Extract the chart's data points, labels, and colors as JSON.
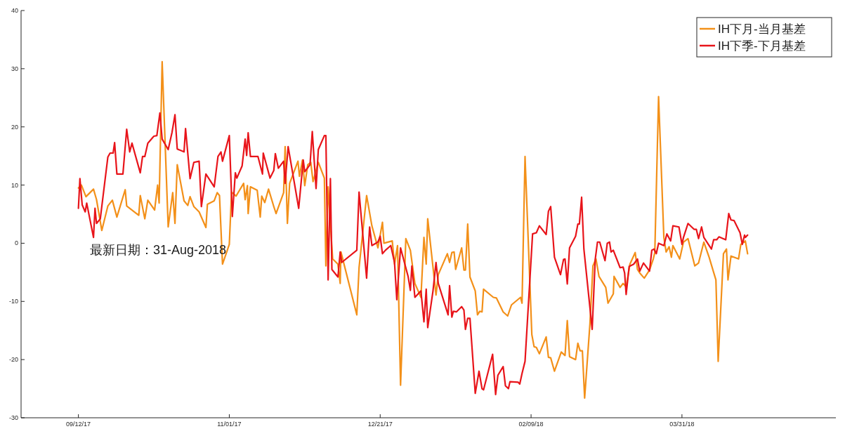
{
  "chart_data": {
    "type": "line",
    "x": [
      "2017-09-12T00:00",
      "2017-09-13T00:00",
      "2017-09-14T12:00",
      "2017-09-17T00:00",
      "2017-09-18T00:00",
      "2017-09-19T18:00",
      "2017-09-21T18:00",
      "2017-09-23T06:00",
      "2017-09-24T18:00",
      "2017-09-27T12:00",
      "2017-09-28T00:00",
      "2017-10-01T00:00",
      "2017-10-02T00:00",
      "2017-10-02T12:00",
      "2017-10-04T00:00",
      "2017-10-05T00:00",
      "2017-10-07T06:00",
      "2017-10-08T06:00",
      "2017-10-08T18:00",
      "2017-10-09T18:00",
      "2017-10-11T18:00",
      "2017-10-13T06:00",
      "2017-10-14T00:00",
      "2017-10-14T18:00",
      "2017-10-17T00:00",
      "2017-10-18T06:00",
      "2017-10-19T00:00",
      "2017-10-20T06:00",
      "2017-10-22T00:00",
      "2017-10-24T06:00",
      "2017-10-24T18:00",
      "2017-10-27T00:00",
      "2017-10-28T00:00",
      "2017-10-28T18:00",
      "2017-10-29T18:00",
      "2017-11-01T00:00",
      "2017-11-01T18:00",
      "2017-11-03T06:00",
      "2017-11-05T18:00",
      "2017-11-06T06:00",
      "2017-11-07T00:00",
      "2017-11-07T06:00",
      "2017-11-08T00:00",
      "2017-11-10T06:00",
      "2017-11-11T06:00",
      "2017-11-11T18:00",
      "2017-11-12T18:00",
      "2017-11-14T00:00",
      "2017-11-15T18:00",
      "2017-11-16T12:00",
      "2017-11-19T00:00",
      "2017-11-19T12:00",
      "2017-11-20T06:00",
      "2017-11-21T00:00",
      "2017-11-23T18:00",
      "2017-11-24T06:00",
      "2017-11-25T06:00",
      "2017-11-26T00:00",
      "2017-11-27T00:00",
      "2017-11-28T00:00",
      "2017-11-28T18:00",
      "2017-11-30T12:00",
      "2017-12-02T12:00",
      "2017-12-03T00:00",
      "2017-12-03T18:00",
      "2017-12-05T06:00",
      "2017-12-07T00:00",
      "2017-12-07T18:00",
      "2017-12-08T00:00",
      "2017-12-13T06:00",
      "2017-12-14T00:00",
      "2017-12-16T12:00",
      "2017-12-18T06:00",
      "2017-12-20T06:00",
      "2017-12-21T18:00",
      "2017-12-22T06:00",
      "2017-12-25T00:00",
      "2017-12-25T18:00",
      "2017-12-26T18:00",
      "2017-12-27T18:00",
      "2017-12-29T12:00",
      "2017-12-31T00:00",
      "2018-01-01T12:00",
      "2018-01-03T12:00",
      "2018-01-04T12:00",
      "2018-01-05T06:00",
      "2018-01-05T18:00",
      "2018-01-08T12:00",
      "2018-01-09T06:00",
      "2018-01-12T06:00",
      "2018-01-13T00:00",
      "2018-01-13T18:00",
      "2018-01-14T12:00",
      "2018-01-15T00:00",
      "2018-01-17T00:00",
      "2018-01-17T18:00",
      "2018-01-18T06:00",
      "2018-01-19T00:00",
      "2018-01-19T18:00",
      "2018-01-21T12:00",
      "2018-01-22T06:00",
      "2018-01-23T00:00",
      "2018-01-23T18:00",
      "2018-01-24T06:00",
      "2018-01-27T12:00",
      "2018-01-28T12:00",
      "2018-01-30T18:00",
      "2018-02-01T06:00",
      "2018-02-02T12:00",
      "2018-02-05T12:00",
      "2018-02-06T00:00",
      "2018-02-07T00:00",
      "2018-02-09T06:00",
      "2018-02-10T00:00",
      "2018-02-10T18:00",
      "2018-02-11T18:00",
      "2018-02-14T00:00",
      "2018-02-14T18:00",
      "2018-02-15T12:00",
      "2018-02-16T18:00",
      "2018-02-19T00:00",
      "2018-02-20T06:00",
      "2018-02-21T00:00",
      "2018-02-21T18:00",
      "2018-02-23T18:00",
      "2018-02-24T12:00",
      "2018-02-25T06:00",
      "2018-02-26T00:00",
      "2018-02-26T18:00",
      "2018-02-28T12:00",
      "2018-03-01T12:00",
      "2018-03-02T12:00",
      "2018-03-03T12:00",
      "2018-03-05T18:00",
      "2018-03-06T12:00",
      "2018-03-08T06:00",
      "2018-03-08T12:00",
      "2018-03-10T12:00",
      "2018-03-11T12:00",
      "2018-03-12T12:00",
      "2018-03-13T18:00",
      "2018-03-15T12:00",
      "2018-03-16T06:00",
      "2018-03-17T00:00",
      "2018-03-18T12:00",
      "2018-03-20T06:00",
      "2018-03-21T12:00",
      "2018-03-22T00:00",
      "2018-03-23T06:00",
      "2018-03-25T00:00",
      "2018-03-25T18:00",
      "2018-03-26T18:00",
      "2018-03-27T12:00",
      "2018-03-28T00:00",
      "2018-03-30T06:00",
      "2018-03-31T12:00",
      "2018-04-02T00:00",
      "2018-04-04T06:00",
      "2018-04-05T12:00",
      "2018-04-07T06:00",
      "2018-04-09T00:00",
      "2018-04-11T06:00",
      "2018-04-12T00:00",
      "2018-04-13T18:00",
      "2018-04-14T18:00",
      "2018-04-15T06:00",
      "2018-04-16T06:00",
      "2018-04-18T18:00",
      "2018-04-19T12:00",
      "2018-04-21T00:00",
      "2018-04-21T18:00"
    ],
    "series": [
      {
        "name": "IH下月-当月基差",
        "color": "#f39019",
        "values": [
          9.5,
          10,
          8,
          9.3,
          7.5,
          2.2,
          6.4,
          7.4,
          4.5,
          9.2,
          6.4,
          5.2,
          4.8,
          8.2,
          4.2,
          7.4,
          5.7,
          10,
          6.9,
          31.2,
          2.8,
          8.7,
          3.4,
          13.5,
          7.3,
          6.5,
          8,
          6.3,
          5.4,
          2.7,
          6.7,
          7.3,
          8.7,
          8.2,
          -3.6,
          -0.2,
          8.8,
          8.1,
          10.3,
          7.5,
          9.9,
          5.1,
          9.7,
          9.1,
          4.5,
          8.1,
          7.0,
          9.3,
          6.3,
          5.1,
          8.7,
          16.6,
          3.4,
          10.3,
          14.1,
          11.5,
          14.3,
          9.9,
          13.5,
          13.9,
          10.6,
          13.9,
          11.2,
          -3.9,
          9.7,
          -2.7,
          -3.6,
          -6.9,
          -1.5,
          -12.3,
          -4.2,
          8.2,
          3.0,
          -0.8,
          3.6,
          0,
          0.4,
          -3.6,
          -0.4,
          -24.4,
          0.8,
          -1.2,
          -6.9,
          -9.3,
          1,
          -3.6,
          4.2,
          -8.9,
          -5.4,
          -1.8,
          -3.3,
          -1.6,
          -1.5,
          -4.5,
          -0.8,
          -4.6,
          -4.6,
          3.3,
          -5.8,
          -8.2,
          -12.3,
          -11.7,
          -11.8,
          -7.9,
          -9.3,
          -9.4,
          -11.8,
          -12.5,
          -10.6,
          -9.3,
          -10.3,
          14.9,
          -15.7,
          -17.8,
          -17.9,
          -19.0,
          -16.1,
          -19.6,
          -19.7,
          -22,
          -18.7,
          -19.3,
          -13.3,
          -19.5,
          -20.0,
          -17.2,
          -18.5,
          -18.5,
          -26.6,
          -13.9,
          -3.9,
          -2.7,
          -5.7,
          -7.6,
          -10.3,
          -8.7,
          -5.7,
          -7.6,
          -6.9,
          -7.5,
          -3.6,
          -1.6,
          -4.5,
          -5.1,
          -6.0,
          -4.6,
          -2.7,
          -1.6,
          25.2,
          1.0,
          -1.5,
          -0.6,
          -2.4,
          -0.4,
          -2.7,
          0.2,
          0.8,
          -3.9,
          -3.4,
          0.2,
          -2.4,
          -6.3,
          -20.3,
          -1.8,
          -1,
          -6.3,
          -2.2,
          -2.7,
          -0.2,
          0.4,
          -1.8
        ]
      },
      {
        "name": "IH下季-下月基差",
        "color": "#e8141a",
        "x": [
          "2017-09-12T00:00",
          "2017-09-12T12:00",
          "2017-09-13T06:00",
          "2017-09-14T06:00",
          "2017-09-14T18:00",
          "2017-09-17T00:00",
          "2017-09-17T12:00",
          "2017-09-18T00:00",
          "2017-09-19T06:00",
          "2017-09-21T18:00",
          "2017-09-22T12:00",
          "2017-09-23T12:00",
          "2017-09-24T00:00",
          "2017-09-24T18:00",
          "2017-09-26T18:00",
          "2017-09-28T00:00",
          "2017-09-29T00:00",
          "2017-09-29T18:00",
          "2017-10-02T12:00",
          "2017-10-03T06:00",
          "2017-10-04T00:00",
          "2017-10-05T00:00",
          "2017-10-07T00:00",
          "2017-10-08T00:00",
          "2017-10-09T00:00",
          "2017-10-09T18:00",
          "2017-10-11T18:00",
          "2017-10-13T00:00",
          "2017-10-14T00:00",
          "2017-10-14T18:00",
          "2017-10-17T00:00",
          "2017-10-17T12:00",
          "2017-10-19T00:00",
          "2017-10-20T06:00",
          "2017-10-22T00:00",
          "2017-10-22T18:00",
          "2017-10-24T06:00",
          "2017-10-27T00:00",
          "2017-10-28T06:00",
          "2017-10-29T06:00",
          "2017-10-29T18:00",
          "2017-11-01T00:00",
          "2017-11-02T00:00",
          "2017-11-03T00:00",
          "2017-11-03T12:00",
          "2017-11-05T06:00",
          "2017-11-06T06:00",
          "2017-11-06T18:00",
          "2017-11-07T06:00",
          "2017-11-08T00:00",
          "2017-11-09T18:00",
          "2017-11-10T12:00",
          "2017-11-12T00:00",
          "2017-11-12T06:00",
          "2017-11-14T12:00",
          "2017-11-15T18:00",
          "2017-11-16T06:00",
          "2017-11-17T06:00",
          "2017-11-19T00:00",
          "2017-11-19T12:00",
          "2017-11-20T12:00",
          "2017-11-24T00:00",
          "2017-11-25T12:00",
          "2017-11-26T00:00",
          "2017-11-27T18:00",
          "2017-11-28T12:00",
          "2017-11-29T18:00",
          "2017-11-30T12:00",
          "2017-12-02T12:00",
          "2017-12-03T00:00",
          "2017-12-03T18:00",
          "2017-12-04T12:00",
          "2017-12-05T00:00",
          "2017-12-07T00:00",
          "2017-12-07T18:00",
          "2017-12-08T06:00",
          "2017-12-13T06:00",
          "2017-12-14T00:00",
          "2017-12-16T12:00",
          "2017-12-17T12:00",
          "2017-12-18T06:00",
          "2017-12-20T06:00",
          "2017-12-21T00:00",
          "2017-12-21T18:00",
          "2017-12-22T18:00",
          "2017-12-24T12:00",
          "2017-12-25T18:00",
          "2017-12-26T12:00",
          "2017-12-27T18:00",
          "2017-12-30T06:00",
          "2017-12-31T00:00",
          "2017-12-31T12:00",
          "2018-01-01T12:00",
          "2018-01-03T12:00",
          "2018-01-04T12:00",
          "2018-01-05T06:00",
          "2018-01-05T18:00",
          "2018-01-07T12:00",
          "2018-01-08T12:00",
          "2018-01-09T06:00",
          "2018-01-12T12:00",
          "2018-01-13T00:00",
          "2018-01-13T18:00",
          "2018-01-14T06:00",
          "2018-01-15T06:00",
          "2018-01-17T00:00",
          "2018-01-17T18:00",
          "2018-01-18T06:00",
          "2018-01-19T00:00",
          "2018-01-19T18:00",
          "2018-01-21T12:00",
          "2018-01-22T18:00",
          "2018-01-23T18:00",
          "2018-01-24T06:00",
          "2018-01-27T06:00",
          "2018-01-28T06:00",
          "2018-01-29T00:00",
          "2018-01-30T18:00",
          "2018-01-31T12:00",
          "2018-02-01T12:00",
          "2018-02-02T00:00",
          "2018-02-04T18:00",
          "2018-02-05T06:00",
          "2018-02-06T00:00",
          "2018-02-07T00:00",
          "2018-02-09T12:00",
          "2018-02-10T18:00",
          "2018-02-11T18:00",
          "2018-02-14T00:00",
          "2018-02-14T18:00",
          "2018-02-15T12:00",
          "2018-02-16T18:00",
          "2018-02-18T18:00",
          "2018-02-19T18:00",
          "2018-02-20T06:00",
          "2018-02-21T00:00",
          "2018-02-21T18:00",
          "2018-02-23T18:00",
          "2018-02-24T12:00",
          "2018-02-25T00:00",
          "2018-02-25T18:00",
          "2018-02-26T12:00",
          "2018-03-01T06:00",
          "2018-03-02T06:00",
          "2018-03-03T00:00",
          "2018-03-03T18:00",
          "2018-03-05T12:00",
          "2018-03-06T06:00",
          "2018-03-07T00:00",
          "2018-03-07T12:00",
          "2018-03-08T06:00",
          "2018-03-10T12:00",
          "2018-03-11T12:00",
          "2018-03-12T00:00",
          "2018-03-12T12:00",
          "2018-03-13T12:00",
          "2018-03-15T00:00",
          "2018-03-16T06:00",
          "2018-03-17T00:00",
          "2018-03-18T06:00",
          "2018-03-20T06:00",
          "2018-03-21T00:00",
          "2018-03-21T18:00",
          "2018-03-22T12:00",
          "2018-03-23T06:00",
          "2018-03-25T00:00",
          "2018-03-26T00:00",
          "2018-03-27T06:00",
          "2018-03-28T00:00",
          "2018-03-30T00:00",
          "2018-03-31T00:00",
          "2018-03-31T12:00",
          "2018-04-02T00:00",
          "2018-04-04T00:00",
          "2018-04-04T18:00",
          "2018-04-05T12:00",
          "2018-04-06T12:00",
          "2018-04-07T06:00",
          "2018-04-09T18:00",
          "2018-04-10T12:00",
          "2018-04-11T12:00",
          "2018-04-12T06:00",
          "2018-04-14T12:00",
          "2018-04-15T12:00",
          "2018-04-16T06:00",
          "2018-04-17T06:00",
          "2018-04-19T06:00",
          "2018-04-20T00:00",
          "2018-04-20T18:00",
          "2018-04-21T00:00",
          "2018-04-21T18:00"
        ],
        "values": [
          6.0,
          11.1,
          6.6,
          5.4,
          6.9,
          1.0,
          6.0,
          3.4,
          4.2,
          14.8,
          15.5,
          15.5,
          17.3,
          11.9,
          11.9,
          19.6,
          15.7,
          17.2,
          12.1,
          14.9,
          14.9,
          17.2,
          18.4,
          18.5,
          22.4,
          17.9,
          16.1,
          19.0,
          22.1,
          16.2,
          15.7,
          19.7,
          11.1,
          13.9,
          14.1,
          6.3,
          11.9,
          9.7,
          14.9,
          15.7,
          14.1,
          18.5,
          4.6,
          12.1,
          11.2,
          13.3,
          17.9,
          15.1,
          19.0,
          14.9,
          14.9,
          14.9,
          11.9,
          15.5,
          11.2,
          12.5,
          15.4,
          12.9,
          14.1,
          10.3,
          16.6,
          6.0,
          14.3,
          12.3,
          13.5,
          19.2,
          9.4,
          16.1,
          18.5,
          18.5,
          -6.3,
          11.1,
          -4.5,
          -5.8,
          -1.5,
          -3.3,
          -1.2,
          8.8,
          -6.0,
          2.8,
          -0.4,
          0.2,
          1.2,
          -1.8,
          -1.2,
          -0.4,
          -3.3,
          -9.7,
          -0.8,
          -5.7,
          -8.1,
          -3.9,
          -9.3,
          -8.2,
          -13.5,
          -7.9,
          -14.5,
          -8.2,
          -3.3,
          -6.9,
          -12.3,
          -7.3,
          -12.7,
          -11.7,
          -11.8,
          -10.9,
          -11.5,
          -14.8,
          -12.9,
          -12.9,
          -25.8,
          -22.0,
          -25.0,
          -25.2,
          -19.1,
          -26.0,
          -22.7,
          -21.2,
          -24.5,
          -25.0,
          -23.8,
          -23.9,
          -24.2,
          -22.4,
          -20.3,
          1.6,
          1.8,
          3.0,
          1.5,
          5.5,
          6.3,
          -2.4,
          -5.4,
          -2.8,
          -2.7,
          -7.0,
          -0.8,
          1.2,
          3.3,
          3.3,
          7.9,
          -1.0,
          -14.8,
          -2.8,
          0.2,
          0.2,
          -3.0,
          0,
          0.2,
          -1.5,
          -1.2,
          -4.2,
          -4.1,
          -5.1,
          -8.8,
          -4.0,
          -3.6,
          -2.7,
          -4.8,
          -3.4,
          -4.8,
          -1.2,
          -1.0,
          -1.8,
          0,
          -0.4,
          1.6,
          0.4,
          3.0,
          2.8,
          -0.2,
          1.0,
          3.4,
          2.4,
          2.4,
          0.8,
          2.8,
          1.0,
          -1.0,
          0.6,
          0.6,
          1.1,
          0.6,
          5.1,
          4.0,
          3.9,
          1.8,
          -0.2,
          1.4,
          1.0,
          1.4
        ]
      }
    ],
    "xlim": [
      "2017-08-24",
      "2018-05-21"
    ],
    "xticks": [
      {
        "value": "2017-09-12",
        "label": "09/12/17"
      },
      {
        "value": "2017-11-01",
        "label": "11/01/17"
      },
      {
        "value": "2017-12-21",
        "label": "12/21/17"
      },
      {
        "value": "2018-02-09",
        "label": "02/09/18"
      },
      {
        "value": "2018-03-31",
        "label": "03/31/18"
      }
    ],
    "ylim": [
      -30,
      40
    ],
    "yticks": [
      -30,
      -20,
      -10,
      0,
      10,
      20,
      30,
      40
    ],
    "legend": "top right",
    "grid": false,
    "annotations": [
      "最新日期：31-Aug-2018"
    ]
  }
}
